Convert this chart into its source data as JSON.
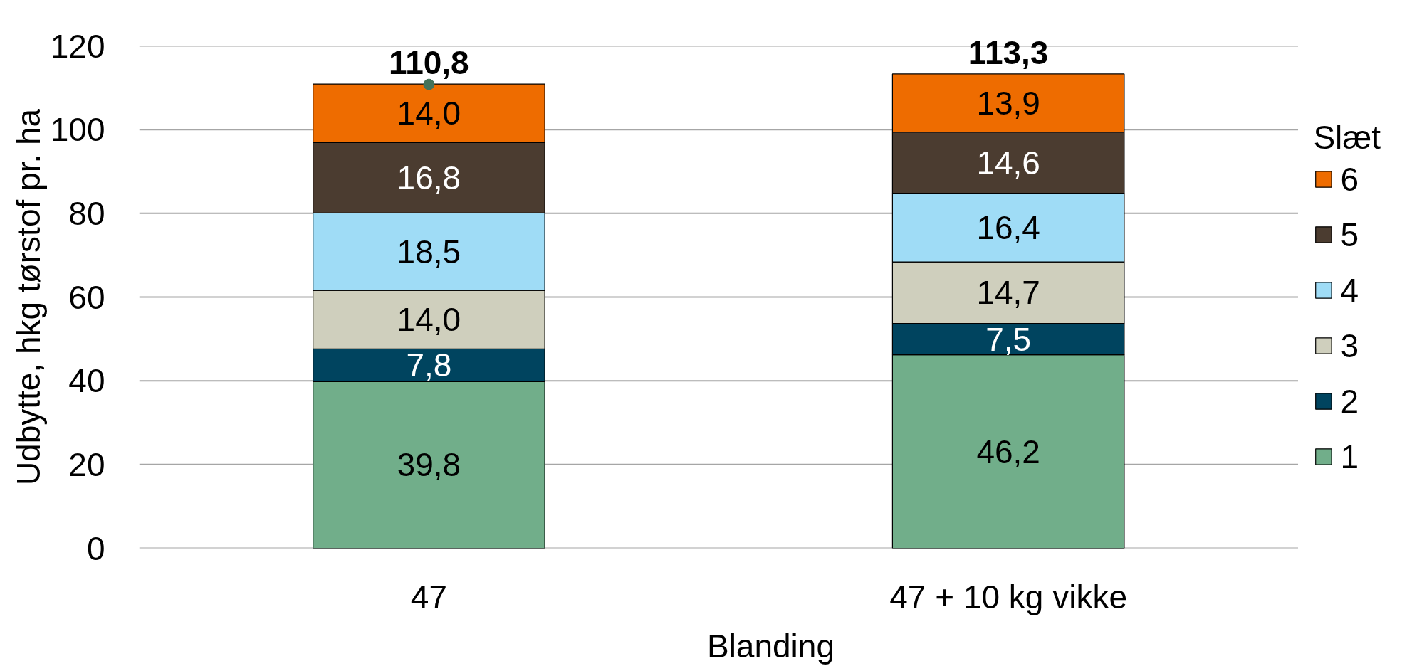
{
  "chart_data": {
    "type": "bar",
    "stacked": true,
    "xlabel": "Blanding",
    "ylabel": "Udbytte, hkg tørstof pr. ha",
    "legend_title": "Slæt",
    "legend": "right",
    "grid": "y",
    "categories": [
      "47",
      "47 + 10 kg vikke"
    ],
    "ylim": [
      0,
      120
    ],
    "yticks": [
      0,
      20,
      40,
      60,
      80,
      100,
      120
    ],
    "totals": [
      "110,8",
      "113,3"
    ],
    "series": [
      {
        "name": "1",
        "color": "#71ae8a",
        "values": [
          39.8,
          46.2
        ],
        "value_labels": [
          "39,8",
          "46,2"
        ]
      },
      {
        "name": "2",
        "color": "#00445f",
        "values": [
          7.8,
          7.5
        ],
        "value_labels": [
          "7,8",
          "7,5"
        ]
      },
      {
        "name": "3",
        "color": "#cfcfbd",
        "values": [
          14.0,
          14.7
        ],
        "value_labels": [
          "14,0",
          "14,7"
        ]
      },
      {
        "name": "4",
        "color": "#9fdcf6",
        "values": [
          18.5,
          16.4
        ],
        "value_labels": [
          "18,5",
          "16,4"
        ]
      },
      {
        "name": "5",
        "color": "#4b3c30",
        "values": [
          16.8,
          14.6
        ],
        "value_labels": [
          "16,8",
          "14,6"
        ]
      },
      {
        "name": "6",
        "color": "#ee6c00",
        "values": [
          14.0,
          13.9
        ],
        "value_labels": [
          "14,0",
          "13,9"
        ]
      },
      {
        "type": "scatter",
        "color": "#44735a",
        "marker": "circle",
        "values": [
          110.8,
          null
        ]
      }
    ]
  }
}
